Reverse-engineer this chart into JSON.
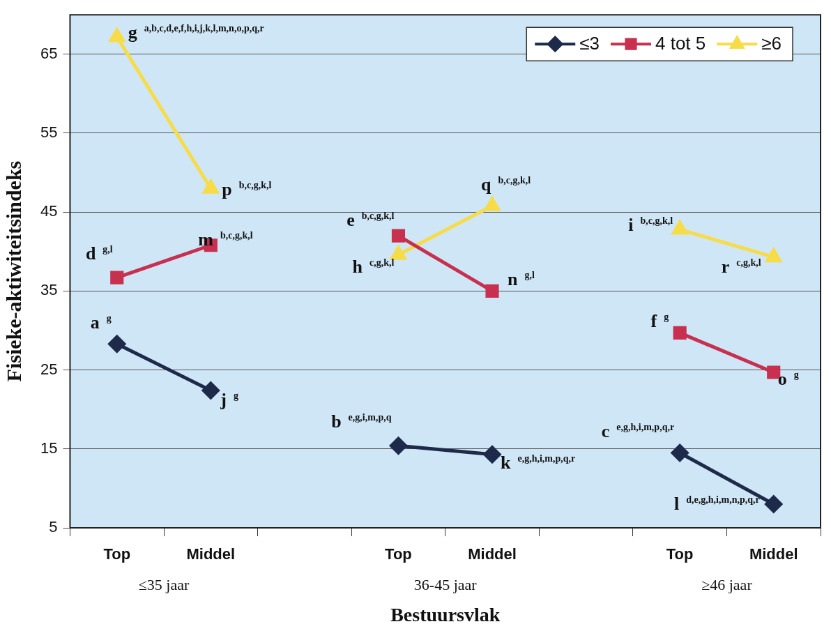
{
  "chart_data": {
    "type": "line",
    "xlabel": "Bestuursvlak",
    "ylabel": "Fisieke-aktiwiteitsindeks",
    "categories": [
      "Top",
      "Middel",
      null,
      "Top",
      "Middel",
      null,
      "Top",
      "Middel"
    ],
    "ylim": [
      5,
      70
    ],
    "yticks": [
      5,
      15,
      25,
      35,
      45,
      55,
      65
    ],
    "grid": "y",
    "legend": "top right",
    "series": [
      {
        "name": "≤3",
        "color": "#1e2a4a",
        "marker": "diamond",
        "values": [
          28.3,
          22.4,
          null,
          15.4,
          14.3,
          null,
          14.5,
          8.0
        ],
        "value_labels": [
          "a$^{g}$",
          "j$^{g}$",
          null,
          "b$^{e,g,i,m,p,q}$",
          "k$^{e,g,h,i,m,p,q,r}$",
          null,
          "c$^{e,g,h,i,m,p,q,r}$",
          "l$^{d,e,g,h,i,m,n,p,q,r}$"
        ]
      },
      {
        "name": "4 tot 5",
        "color": "#c8304f",
        "marker": "square",
        "values": [
          36.7,
          40.8,
          null,
          42.0,
          35.0,
          null,
          29.7,
          24.7
        ],
        "value_labels": [
          "d$^{g,l}$",
          "m$^{b,c,g,k,l}$",
          null,
          "e$^{b,c,g,k,l}$",
          "n$^{g,l}$",
          null,
          "f$^{g}$",
          "o$^{g}$"
        ]
      },
      {
        "name": "≥6",
        "color": "#f7dc4a",
        "marker": "triangle",
        "values": [
          67.2,
          48.0,
          null,
          39.6,
          45.8,
          null,
          42.8,
          39.3
        ],
        "value_labels": [
          "g$^{a,b,c,d,e,f,h,i,j,k,l,m,n,o,p,q,r}$",
          "p$^{b,c,g,k,l}$",
          null,
          "h$^{c,g,k,l}$",
          "q$^{b,c,g,k,l}$",
          null,
          "i$^{b,c,g,k,l}$",
          "r$^{c,g,k,l}$"
        ]
      }
    ],
    "annotations": [
      "≤35 jaar",
      "36-45 jaar",
      "≥46 jaar"
    ]
  }
}
